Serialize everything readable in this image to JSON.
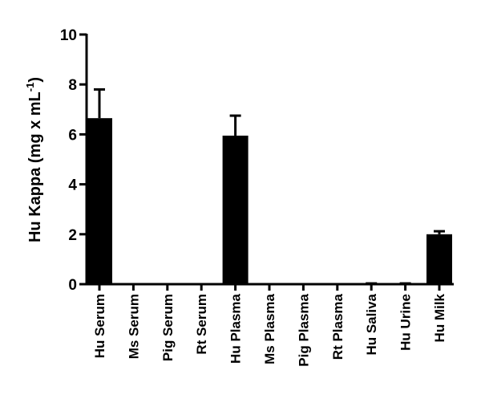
{
  "chart_data": {
    "type": "bar",
    "ylabel": {
      "text": "Hu Kappa (mg x mL",
      "superscript": "-1",
      "suffix": ")"
    },
    "categories": [
      "Hu Serum",
      "Ms Serum",
      "Pig Serum",
      "Rt Serum",
      "Hu Plasma",
      "Ms Plasma",
      "Pig Plasma",
      "Rt Plasma",
      "Hu Saliva",
      "Hu Urine",
      "Hu Milk"
    ],
    "values": [
      6.65,
      0,
      0,
      0,
      5.95,
      0,
      0,
      0,
      0.03,
      0.03,
      2.0
    ],
    "errors": [
      1.15,
      0,
      0,
      0,
      0.8,
      0,
      0,
      0,
      0,
      0,
      0.12
    ],
    "color": "#000000",
    "ylim": [
      0,
      10
    ],
    "yticks": [
      0,
      2,
      4,
      6,
      8,
      10
    ],
    "grid": false
  }
}
